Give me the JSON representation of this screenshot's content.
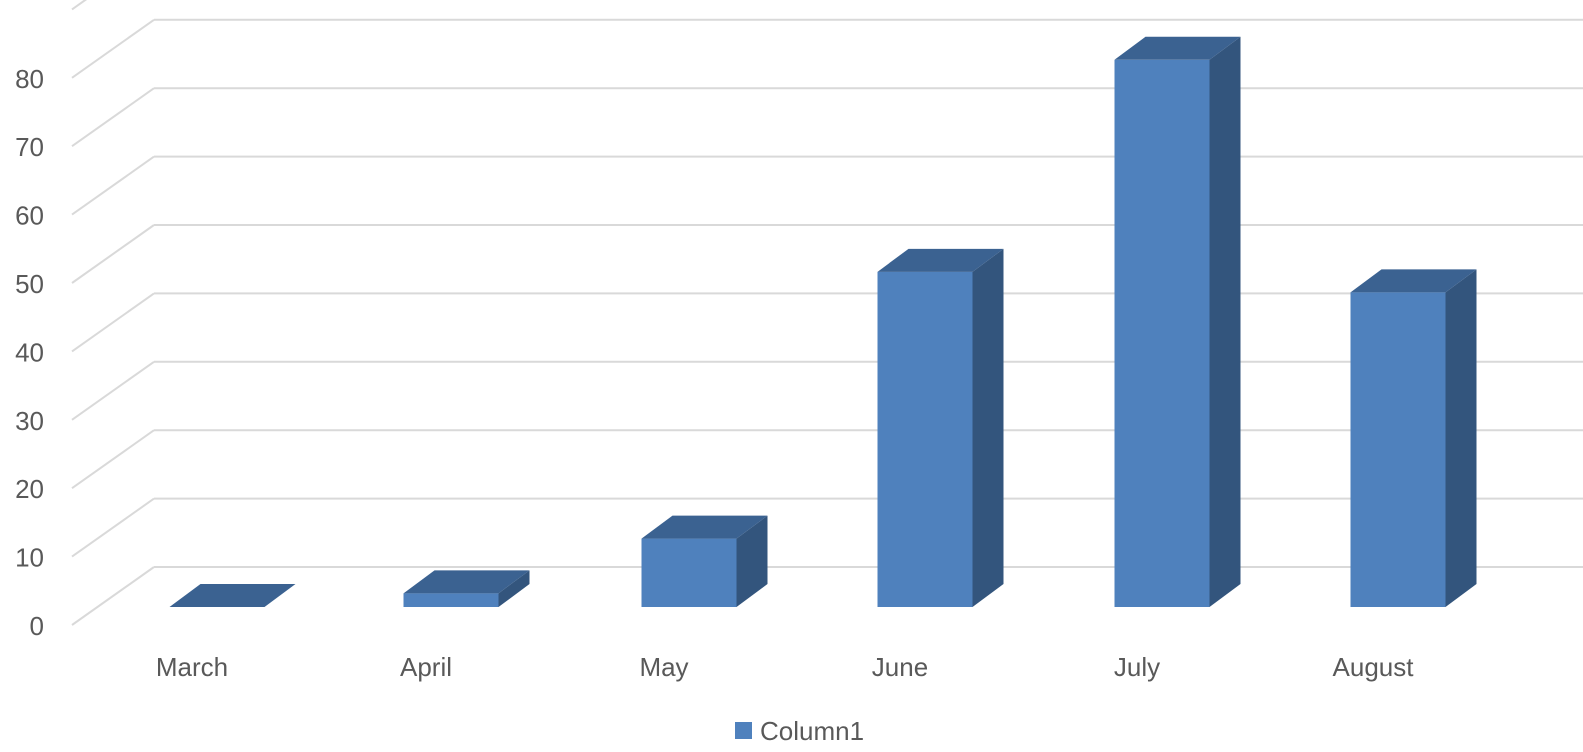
{
  "chart_data": {
    "type": "bar",
    "style": "3d-column",
    "categories": [
      "March",
      "April",
      "May",
      "June",
      "July",
      "August"
    ],
    "series": [
      {
        "name": "Column1",
        "values": [
          0,
          2,
          10,
          49,
          80,
          46
        ]
      }
    ],
    "ylim": [
      0,
      90
    ],
    "yticks": [
      0,
      10,
      20,
      30,
      40,
      50,
      60,
      70,
      80
    ],
    "title": "",
    "xlabel": "",
    "ylabel": "",
    "grid": true,
    "legend": "bottom-center",
    "colors": {
      "front": "#4f81bd",
      "side": "#33557d",
      "top": "#3b6291",
      "grid": "#d9d9d9",
      "text": "#595959"
    }
  }
}
